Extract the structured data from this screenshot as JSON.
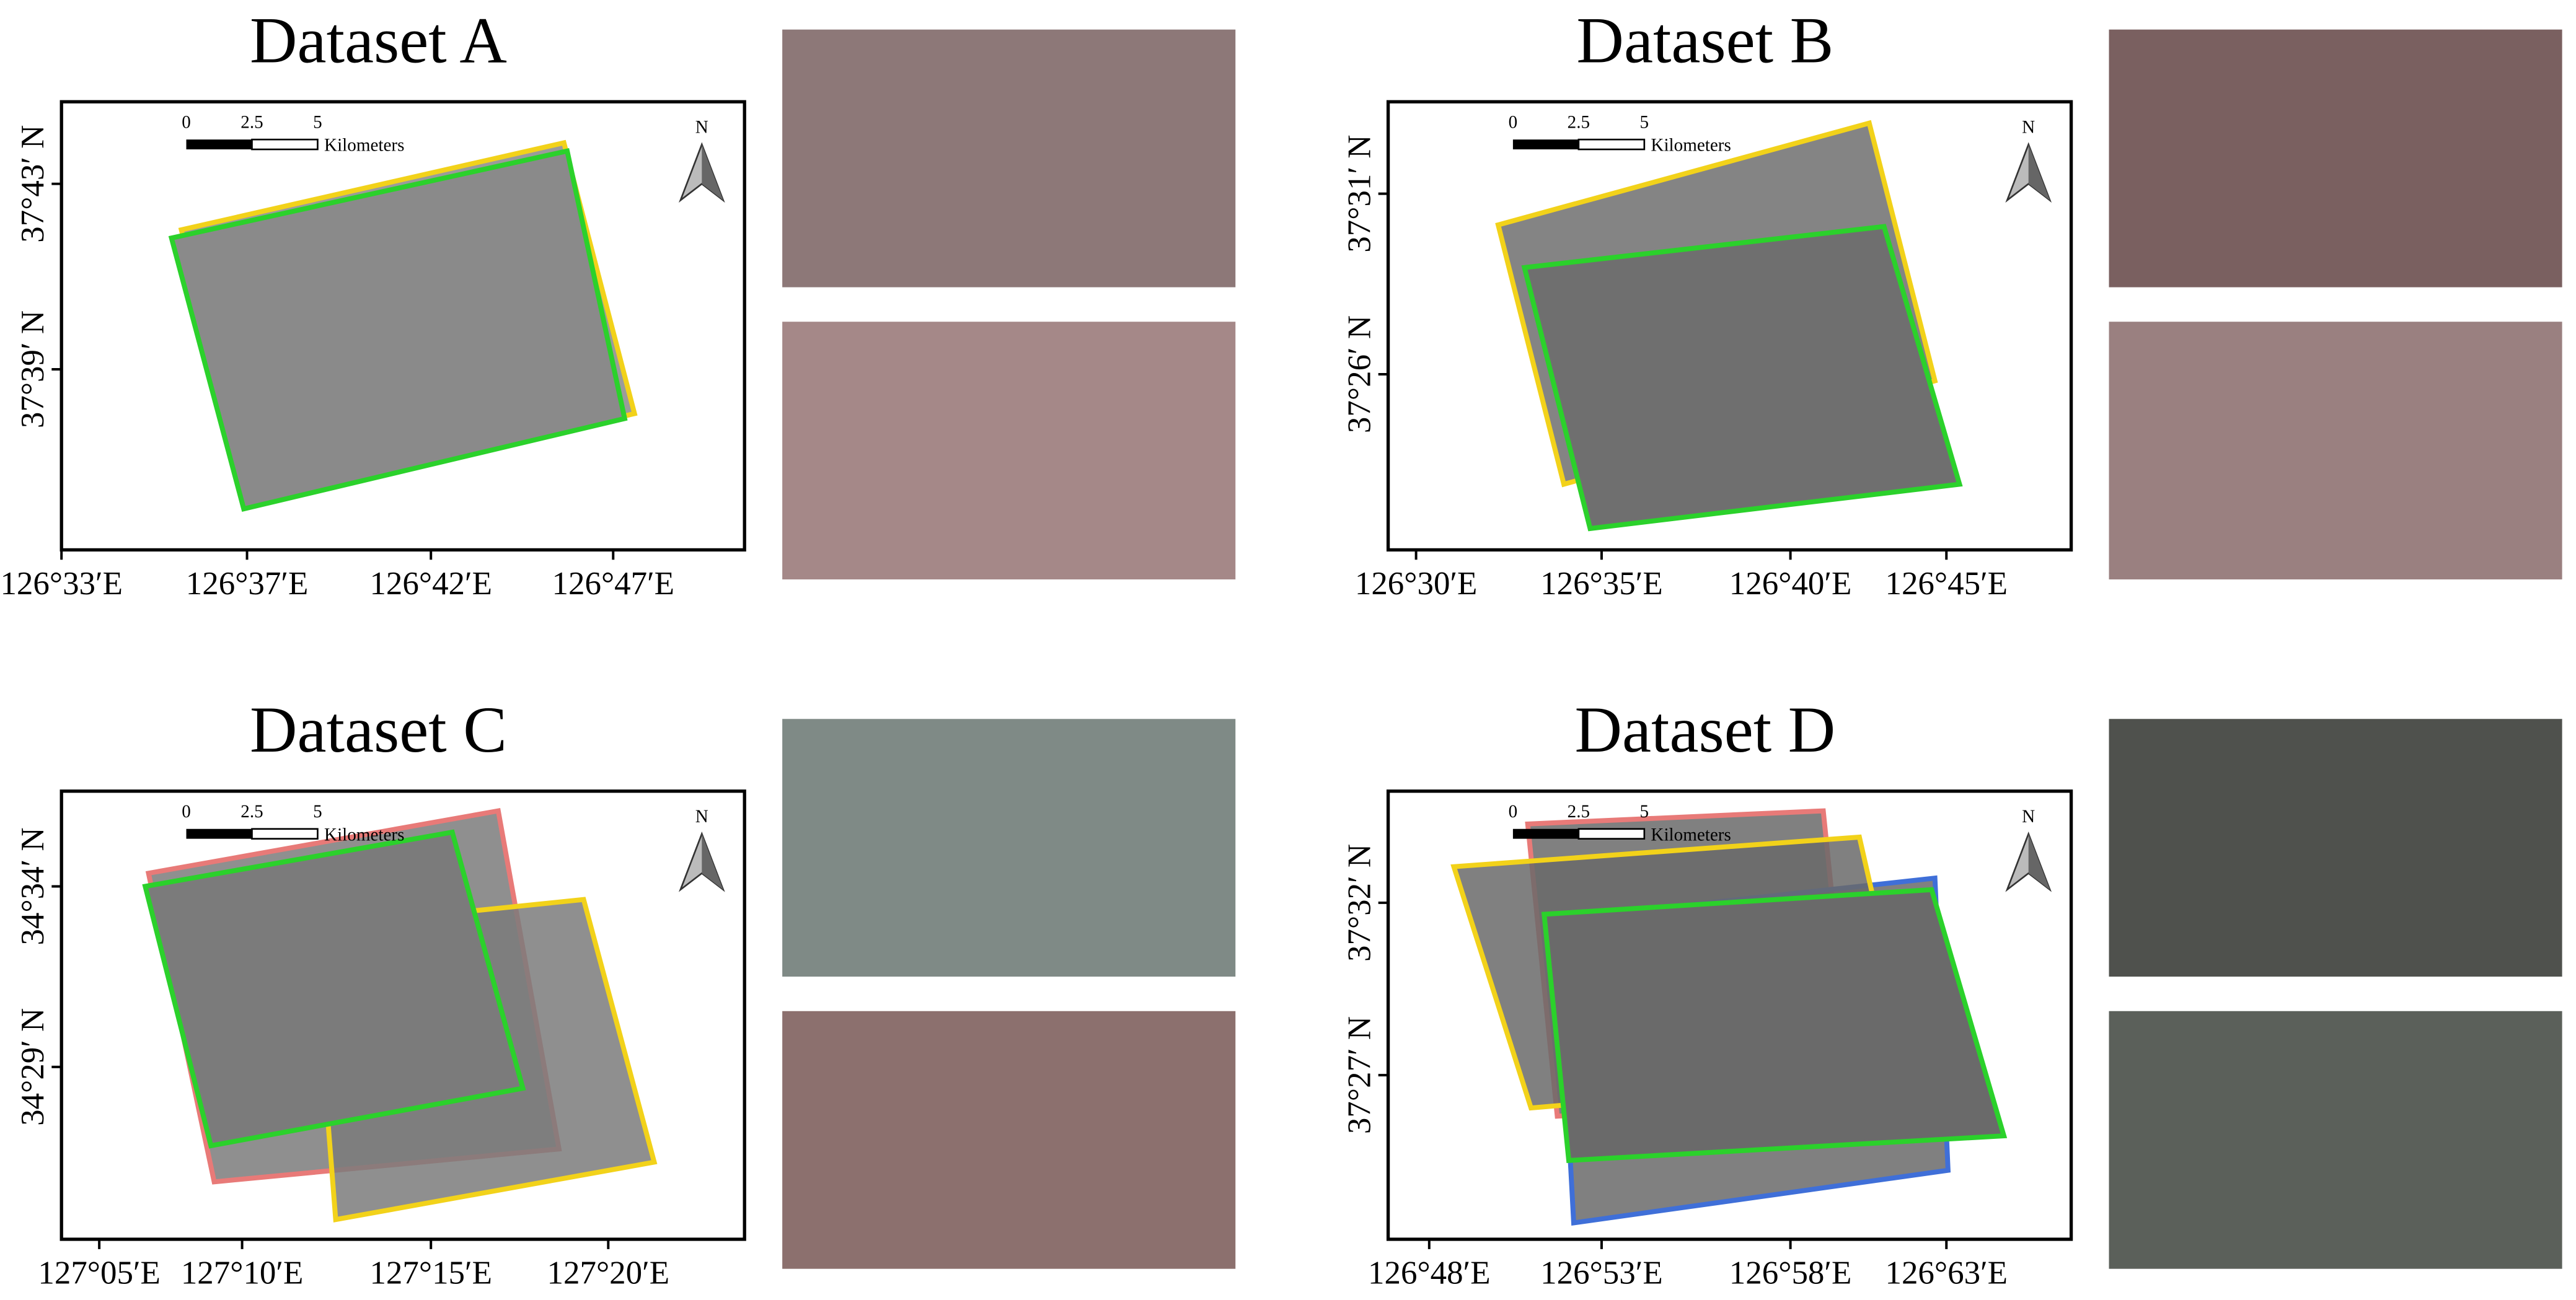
{
  "panels": [
    {
      "title": "Dataset A",
      "scale": [
        "0",
        "2.5",
        "5"
      ],
      "scale_unit": "Kilometers",
      "north": "N",
      "lat_ticks": [
        "37°43′ N",
        "37°39′ N"
      ],
      "lon_ticks": [
        "126°33′E",
        "126°37′E",
        "126°42′E",
        "126°47′E"
      ]
    },
    {
      "title": "Dataset B",
      "scale": [
        "0",
        "2.5",
        "5"
      ],
      "scale_unit": "Kilometers",
      "north": "N",
      "lat_ticks": [
        "37°31′ N",
        "37°26′ N"
      ],
      "lon_ticks": [
        "126°30′E",
        "126°35′E",
        "126°40′E",
        "126°45′E"
      ]
    },
    {
      "title": "Dataset C",
      "scale": [
        "0",
        "2.5",
        "5"
      ],
      "scale_unit": "Kilometers",
      "north": "N",
      "lat_ticks": [
        "34°34′ N",
        "34°29′ N"
      ],
      "lon_ticks": [
        "127°05′E",
        "127°10′E",
        "127°15′E",
        "127°20′E"
      ]
    },
    {
      "title": "Dataset D",
      "scale": [
        "0",
        "2.5",
        "5"
      ],
      "scale_unit": "Kilometers",
      "north": "N",
      "lat_ticks": [
        "37°32′ N",
        "37°27′ N"
      ],
      "lon_ticks": [
        "126°48′E",
        "126°53′E",
        "126°58′E",
        "126°63′E"
      ]
    }
  ]
}
